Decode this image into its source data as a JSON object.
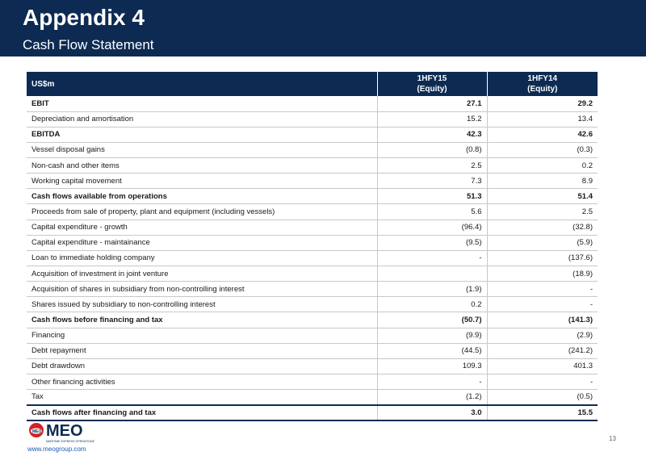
{
  "slide": {
    "title": "Appendix 4",
    "subtitle": "Cash Flow Statement"
  },
  "table": {
    "header": {
      "label": "US$m",
      "col1_line1": "1HFY15",
      "col1_line2": "(Equity)",
      "col2_line1": "1HFY14",
      "col2_line2": "(Equity)"
    },
    "rows": [
      {
        "label": "EBIT",
        "v1": "27.1",
        "v2": "29.2",
        "bold": true
      },
      {
        "label": "Depreciation and amortisation",
        "v1": "15.2",
        "v2": "13.4",
        "bold": false
      },
      {
        "label": "EBITDA",
        "v1": "42.3",
        "v2": "42.6",
        "bold": true
      },
      {
        "label": "Vessel disposal gains",
        "v1": "(0.8)",
        "v2": "(0.3)",
        "bold": false
      },
      {
        "label": "Non-cash and other items",
        "v1": "2.5",
        "v2": "0.2",
        "bold": false
      },
      {
        "label": "Working capital movement",
        "v1": "7.3",
        "v2": "8.9",
        "bold": false
      },
      {
        "label": "Cash flows available from operations",
        "v1": "51.3",
        "v2": "51.4",
        "bold": true
      },
      {
        "label": "Proceeds from sale of property, plant and equipment (including vessels)",
        "v1": "5.6",
        "v2": "2.5",
        "bold": false
      },
      {
        "label": "Capital expenditure - growth",
        "v1": "(96.4)",
        "v2": "(32.8)",
        "bold": false
      },
      {
        "label": "Capital expenditure - maintainance",
        "v1": "(9.5)",
        "v2": "(5.9)",
        "bold": false
      },
      {
        "label": "Loan to immediate holding company",
        "v1": "-",
        "v2": "(137.6)",
        "bold": false
      },
      {
        "label": "Acquisition of investment in joint venture",
        "v1": "",
        "v2": "(18.9)",
        "bold": false
      },
      {
        "label": "Acquisition of shares in subsidiary from non-controlling interest",
        "v1": "(1.9)",
        "v2": "-",
        "bold": false
      },
      {
        "label": "Shares issued by subsidiary to non-controlling interest",
        "v1": "0.2",
        "v2": "-",
        "bold": false
      },
      {
        "label": "Cash flows before financing and tax",
        "v1": "(50.7)",
        "v2": "(141.3)",
        "bold": true
      },
      {
        "label": "Financing",
        "v1": "(9.9)",
        "v2": "(2.9)",
        "bold": false
      },
      {
        "label": "Debt repayment",
        "v1": "(44.5)",
        "v2": "(241.2)",
        "bold": false
      },
      {
        "label": "Debt drawdown",
        "v1": "109.3",
        "v2": "401.3",
        "bold": false
      },
      {
        "label": "Other financing activities",
        "v1": "-",
        "v2": "-",
        "bold": false
      },
      {
        "label": "Tax",
        "v1": "(1.2)",
        "v2": "(0.5)",
        "bold": false
      },
      {
        "label": "Cash flows after financing and tax",
        "v1": "3.0",
        "v2": "15.5",
        "bold": true,
        "final": true
      }
    ]
  },
  "footer": {
    "logo_text": "MEO",
    "logo_tagline": "MARITIME EXPRESS OPERATIONS",
    "website": "www.meogroup.com",
    "page_number": "13"
  },
  "colors": {
    "navy": "#0d2b52",
    "logo_red": "#d42027",
    "link_blue": "#1a5bb0"
  }
}
